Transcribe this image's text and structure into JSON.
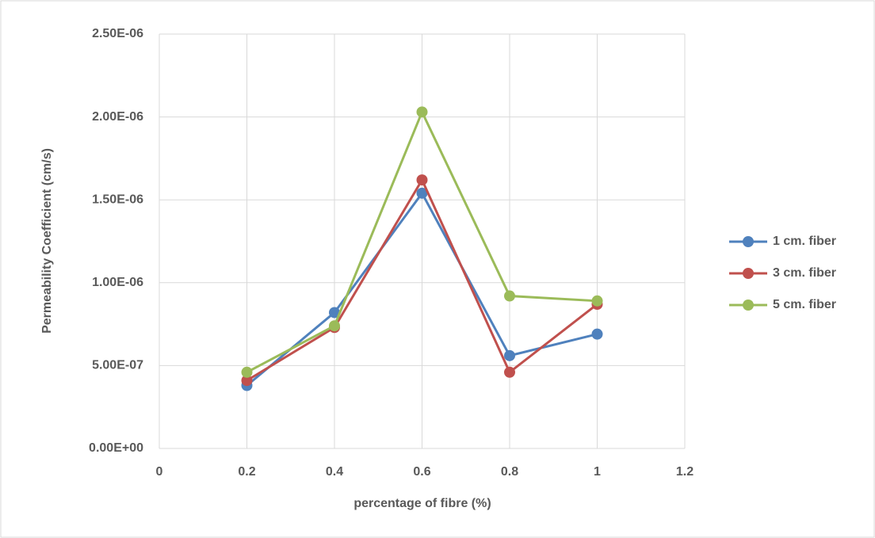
{
  "chart_data": {
    "type": "line",
    "x_label": "percentage of fibre (%)",
    "y_label": "Permeability Coefficient (cm/s)",
    "x": [
      0.2,
      0.4,
      0.6,
      0.8,
      1
    ],
    "series": [
      {
        "name": "1 cm. fiber",
        "color": "#4f81bd",
        "values": [
          3.8e-07,
          8.2e-07,
          1.54e-06,
          5.6e-07,
          6.9e-07
        ]
      },
      {
        "name": "3 cm. fiber",
        "color": "#c0504d",
        "values": [
          4.1e-07,
          7.3e-07,
          1.62e-06,
          4.6e-07,
          8.7e-07
        ]
      },
      {
        "name": "5 cm. fiber",
        "color": "#9bbb59",
        "values": [
          4.6e-07,
          7.4e-07,
          2.03e-06,
          9.2e-07,
          8.9e-07
        ]
      }
    ],
    "xlim": [
      0,
      1.2
    ],
    "xticks": [
      0,
      0.2,
      0.4,
      0.6,
      0.8,
      1,
      1.2
    ],
    "ylim": [
      0,
      2.5e-06
    ],
    "yticks": [
      {
        "value": 0,
        "label": "0.00E+00"
      },
      {
        "value": 5e-07,
        "label": "5.00E-07"
      },
      {
        "value": 1e-06,
        "label": "1.00E-06"
      },
      {
        "value": 1.5e-06,
        "label": "1.50E-06"
      },
      {
        "value": 2e-06,
        "label": "2.00E-06"
      },
      {
        "value": 2.5e-06,
        "label": "2.50E-06"
      }
    ],
    "grid": true,
    "legend": "right"
  }
}
